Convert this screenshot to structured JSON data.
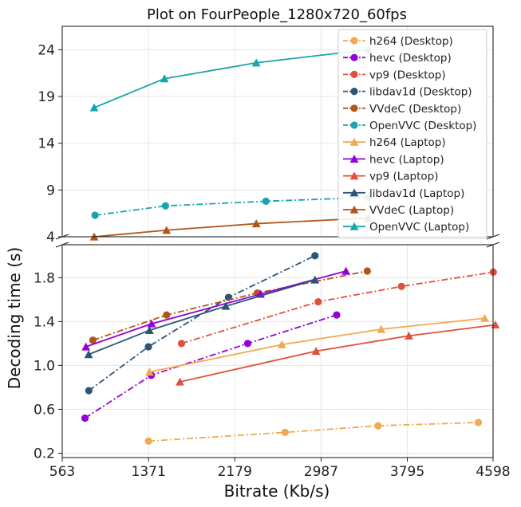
{
  "chart_data": {
    "type": "line",
    "title": "Plot on FourPeople_1280x720_60fps",
    "xlabel": "Bitrate (Kb/s)",
    "ylabel": "Decoding time (s)",
    "x_ticks": [
      "563",
      "1371",
      "2179",
      "2987",
      "3795",
      "4598"
    ],
    "xlim": [
      563,
      4598
    ],
    "broken_y_axis": true,
    "upper_panel": {
      "ylim": [
        4,
        26.5
      ],
      "y_ticks": [
        "4",
        "9",
        "14",
        "19",
        "24"
      ]
    },
    "lower_panel": {
      "ylim": [
        0.16,
        2.1
      ],
      "y_ticks": [
        "0.2",
        "0.6",
        "1.0",
        "1.4",
        "1.8"
      ]
    },
    "grid": true,
    "legend_position": "top-right",
    "series": [
      {
        "name": "h264 (Desktop)",
        "color": "#f2a950",
        "marker": "circle",
        "dash": "dashdot",
        "panel": "lower",
        "x": [
          1371,
          2650,
          3520,
          4460
        ],
        "y": [
          0.31,
          0.39,
          0.45,
          0.48
        ]
      },
      {
        "name": "hevc (Desktop)",
        "color": "#9400d8",
        "marker": "circle",
        "dash": "dashdot",
        "panel": "lower",
        "x": [
          776,
          1397,
          2300,
          3133
        ],
        "y": [
          0.52,
          0.91,
          1.2,
          1.46
        ]
      },
      {
        "name": "vp9 (Desktop)",
        "color": "#e0503e",
        "marker": "circle",
        "dash": "dashdot",
        "panel": "lower",
        "x": [
          1680,
          2960,
          3740,
          4600
        ],
        "y": [
          1.2,
          1.58,
          1.72,
          1.85
        ]
      },
      {
        "name": "libdav1d (Desktop)",
        "color": "#2a5577",
        "marker": "circle",
        "dash": "dashdot",
        "panel": "lower",
        "x": [
          812,
          1370,
          2120,
          2930
        ],
        "y": [
          0.77,
          1.17,
          1.62,
          2.0
        ]
      },
      {
        "name": "VVdeC (Desktop)",
        "color": "#b0561b",
        "marker": "circle",
        "dash": "dashdot",
        "panel": "lower",
        "x": [
          850,
          1540,
          2390,
          3420
        ],
        "y": [
          1.23,
          1.46,
          1.66,
          1.86
        ]
      },
      {
        "name": "OpenVVC (Desktop)",
        "color": "#17a4ad",
        "marker": "circle",
        "dash": "dashdot",
        "panel": "upper",
        "x": [
          870,
          1530,
          2470,
          3430
        ],
        "y": [
          6.3,
          7.3,
          7.8,
          8.2
        ]
      },
      {
        "name": "h264 (Laptop)",
        "color": "#f2a950",
        "marker": "triangle",
        "dash": "solid",
        "panel": "lower",
        "x": [
          1380,
          2620,
          3550,
          4520
        ],
        "y": [
          0.94,
          1.19,
          1.33,
          1.43
        ]
      },
      {
        "name": "hevc (Laptop)",
        "color": "#9400d8",
        "marker": "triangle",
        "dash": "solid",
        "panel": "lower",
        "x": [
          785,
          1400,
          2420,
          3220
        ],
        "y": [
          1.17,
          1.38,
          1.65,
          1.86
        ]
      },
      {
        "name": "vp9 (Laptop)",
        "color": "#e0503e",
        "marker": "triangle",
        "dash": "solid",
        "panel": "lower",
        "x": [
          1665,
          2940,
          3810,
          4620
        ],
        "y": [
          0.85,
          1.13,
          1.27,
          1.37
        ]
      },
      {
        "name": "libdav1d (Laptop)",
        "color": "#2a5577",
        "marker": "triangle",
        "dash": "solid",
        "panel": "lower",
        "x": [
          810,
          1380,
          2095,
          2930
        ],
        "y": [
          1.1,
          1.32,
          1.54,
          1.78
        ]
      },
      {
        "name": "VVdeC (Laptop)",
        "color": "#b0561b",
        "marker": "triangle",
        "dash": "solid",
        "panel": "upper",
        "x": [
          862,
          1540,
          2380,
          3430
        ],
        "y": [
          4.0,
          4.7,
          5.4,
          6.0
        ]
      },
      {
        "name": "OpenVVC (Laptop)",
        "color": "#17a4ad",
        "marker": "triangle",
        "dash": "solid",
        "panel": "upper",
        "x": [
          862,
          1520,
          2380,
          3430
        ],
        "y": [
          17.8,
          20.9,
          22.6,
          24.0
        ]
      }
    ]
  }
}
